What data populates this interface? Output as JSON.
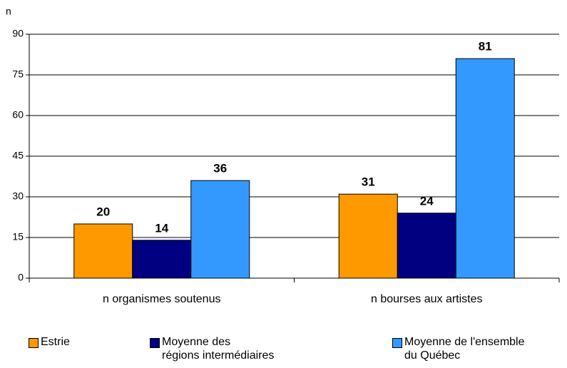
{
  "chart_data": {
    "type": "bar",
    "ylabel": "n",
    "categories": [
      "n organismes soutenus",
      "n bourses aux artistes"
    ],
    "series": [
      {
        "name": "Estrie",
        "color": "#ff9900",
        "values": [
          20,
          31
        ]
      },
      {
        "name": "Moyenne des\nrégions intermédiaires",
        "color": "#000080",
        "values": [
          14,
          24
        ]
      },
      {
        "name": "Moyenne de l'ensemble\ndu Québec",
        "color": "#3399ff",
        "values": [
          36,
          81
        ]
      }
    ],
    "ylim": [
      0,
      90
    ],
    "yticks": [
      0,
      15,
      30,
      45,
      60,
      75,
      90
    ],
    "grid": true,
    "legend": "bottom"
  }
}
